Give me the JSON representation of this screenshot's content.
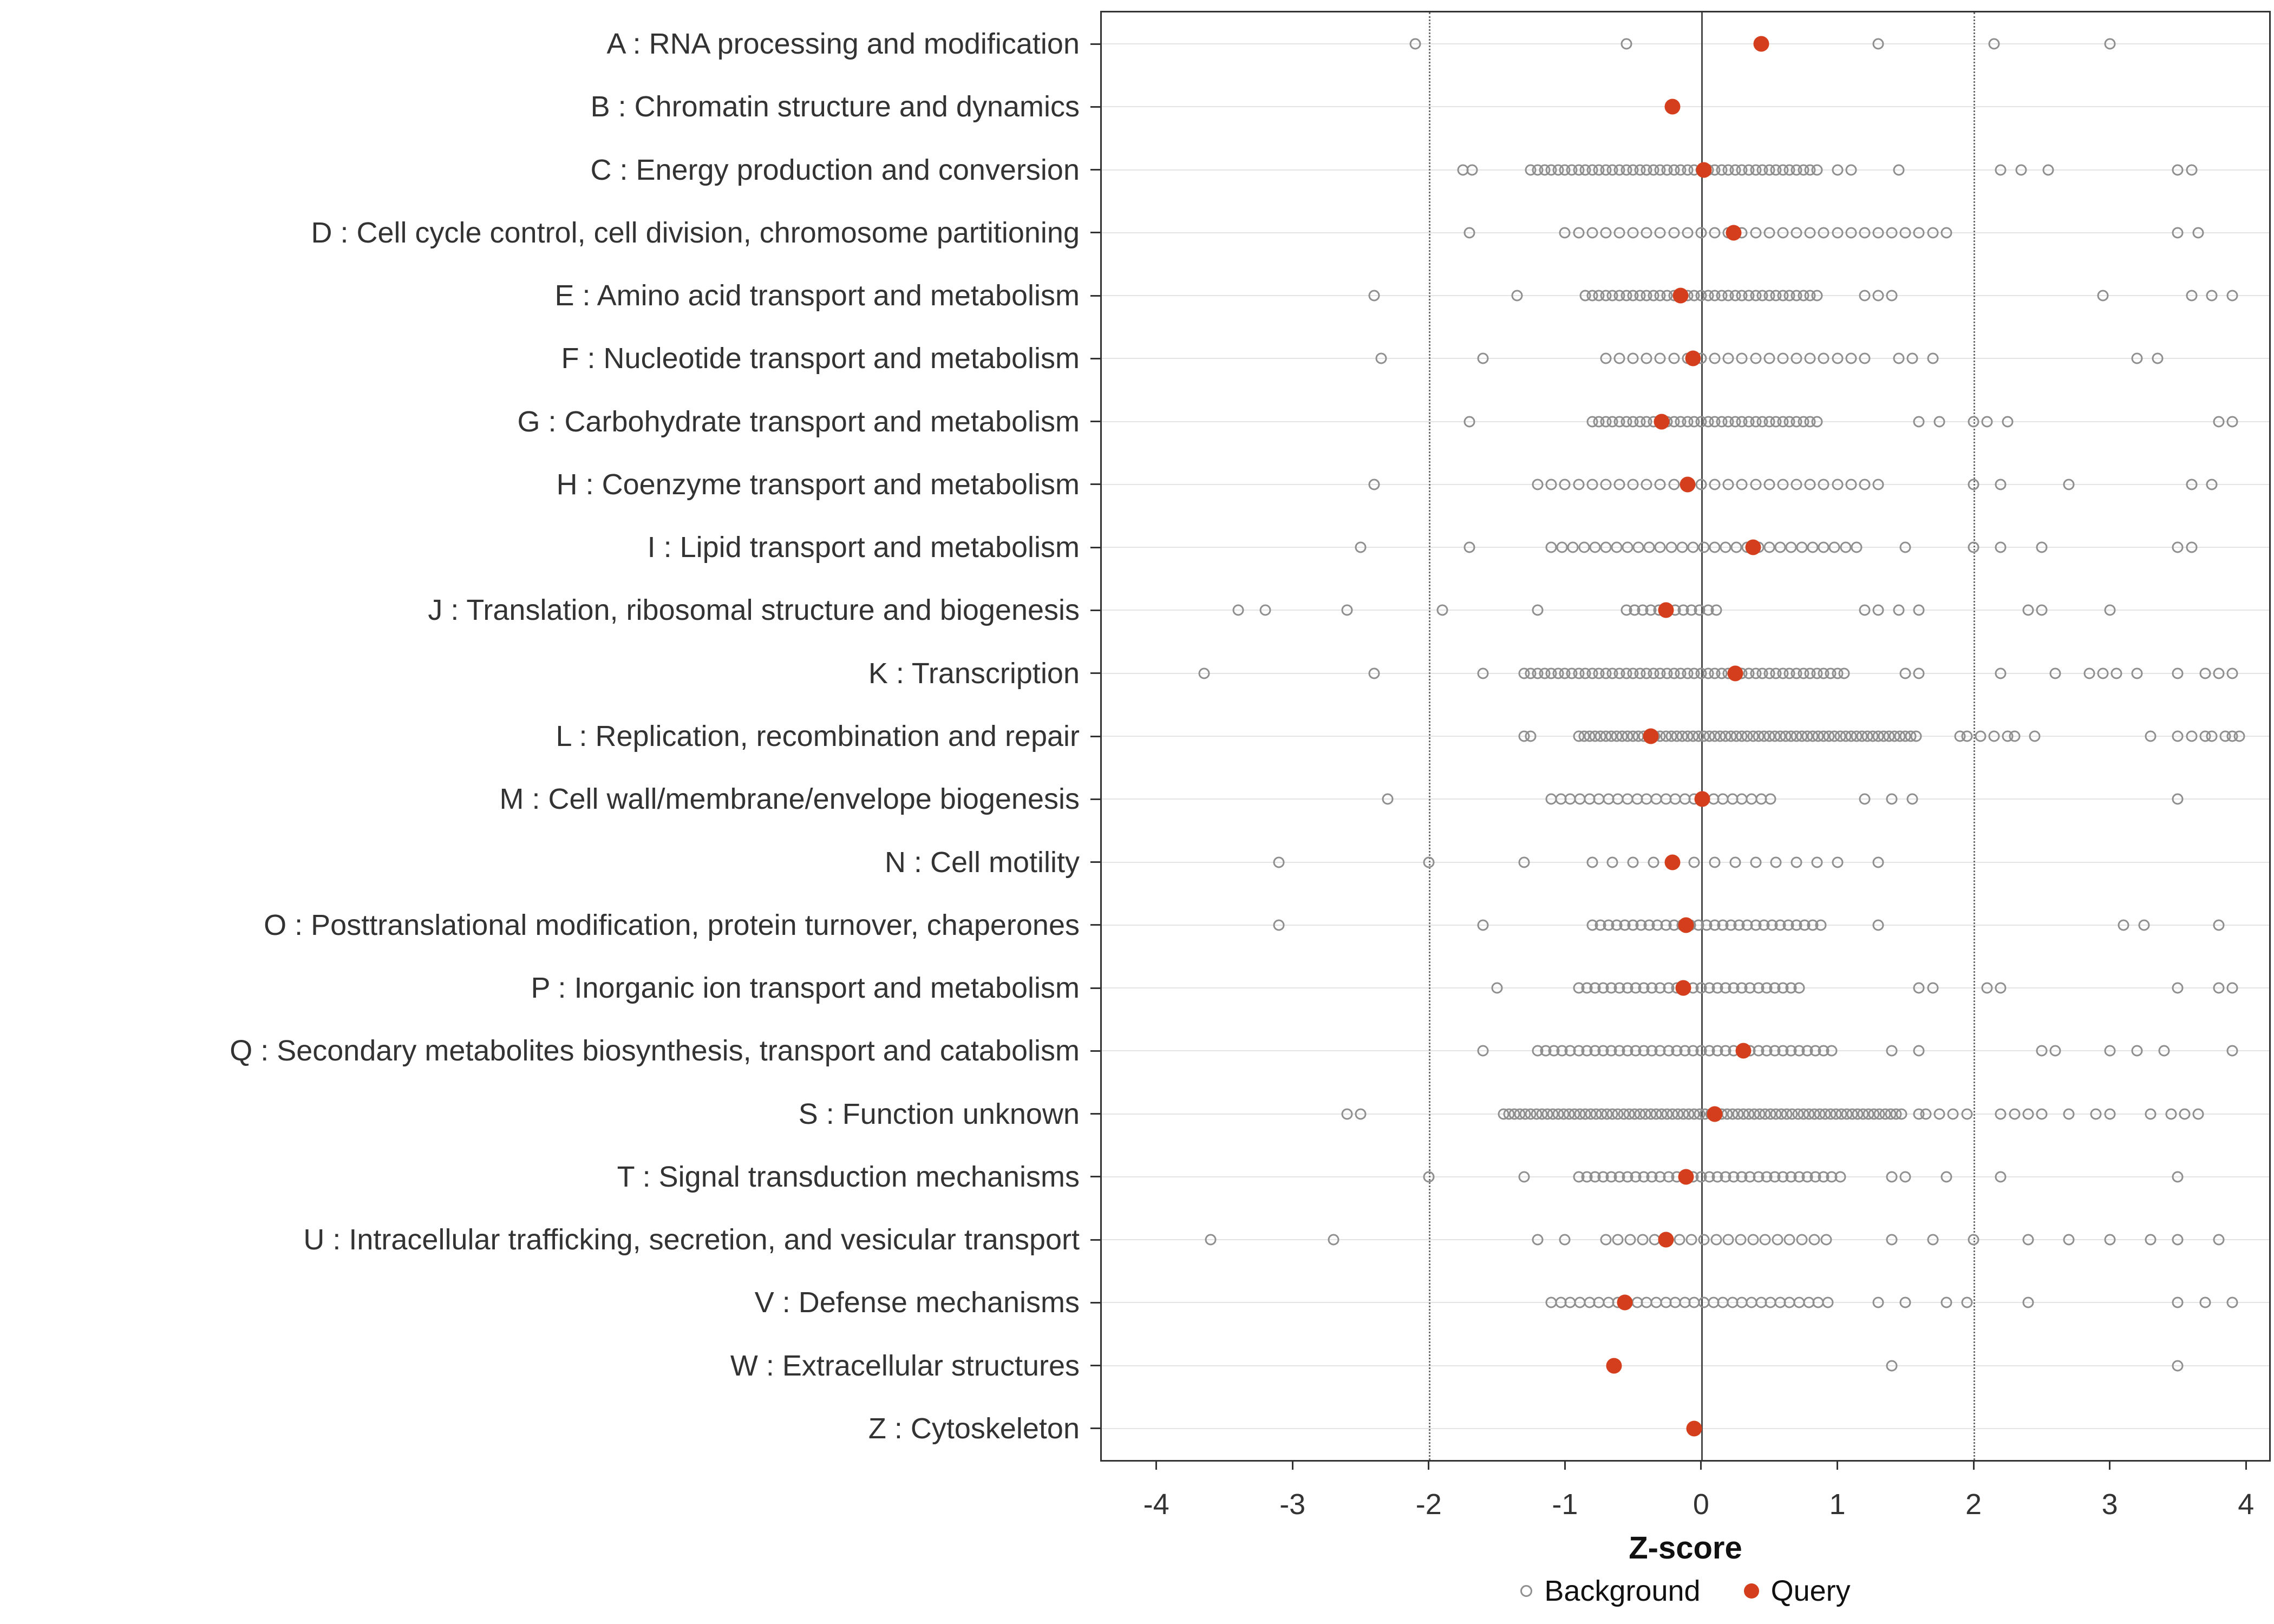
{
  "chart_data": {
    "type": "scatter",
    "title": "",
    "xlabel": "Z-score",
    "xlim": [
      -4.4,
      4.17
    ],
    "x_ticks": [
      -4,
      -3,
      -2,
      -1,
      0,
      1,
      2,
      3,
      4
    ],
    "reference_lines": {
      "solid": [
        0
      ],
      "dotted": [
        -2,
        2
      ]
    },
    "grid": "horizontal",
    "legend_position": "bottom",
    "legend": [
      {
        "label": "Background",
        "style": "open-gray"
      },
      {
        "label": "Query",
        "style": "filled-red"
      }
    ],
    "colors": {
      "query": "#d53e1d",
      "background_stroke": "#8f8f8f",
      "grid": "#e4e4e4",
      "axis": "#333333",
      "zero_line": "#4a4a4a",
      "dotted_line": "#6b6b6b"
    },
    "categories": [
      {
        "key": "A",
        "label": "A : RNA processing and modification",
        "query": 0.44,
        "background": [
          -2.1,
          -0.55,
          1.3,
          2.15,
          3.0
        ],
        "background_runs": []
      },
      {
        "key": "B",
        "label": "B : Chromatin structure and dynamics",
        "query": -0.21,
        "background": [],
        "background_runs": []
      },
      {
        "key": "C",
        "label": "C : Energy production and conversion",
        "query": 0.02,
        "background": [
          -1.75,
          -1.68,
          1.0,
          1.1,
          1.45,
          2.2,
          2.35,
          2.55,
          3.5,
          3.6
        ],
        "background_runs": [
          [
            -1.25,
            0.85,
            0.05
          ]
        ]
      },
      {
        "key": "D",
        "label": "D : Cell cycle control, cell division, chromosome partitioning",
        "query": 0.24,
        "background": [
          -1.7,
          3.5,
          3.65
        ],
        "background_runs": [
          [
            -1.0,
            1.8,
            0.1
          ]
        ]
      },
      {
        "key": "E",
        "label": "E : Amino acid transport and metabolism",
        "query": -0.15,
        "background": [
          -2.4,
          -1.35,
          1.2,
          1.3,
          1.4,
          2.95,
          3.6,
          3.75,
          3.9
        ],
        "background_runs": [
          [
            -0.85,
            0.85,
            0.05
          ]
        ]
      },
      {
        "key": "F",
        "label": "F : Nucleotide transport and metabolism",
        "query": -0.06,
        "background": [
          -2.35,
          -1.6,
          1.45,
          1.55,
          1.7,
          3.2,
          3.35
        ],
        "background_runs": [
          [
            -0.7,
            1.2,
            0.1
          ]
        ]
      },
      {
        "key": "G",
        "label": "G : Carbohydrate transport and metabolism",
        "query": -0.29,
        "background": [
          -1.7,
          1.6,
          1.75,
          2.0,
          2.1,
          2.25,
          3.8,
          3.9
        ],
        "background_runs": [
          [
            -0.8,
            0.85,
            0.05
          ]
        ]
      },
      {
        "key": "H",
        "label": "H : Coenzyme transport and metabolism",
        "query": -0.1,
        "background": [
          -2.4,
          2.0,
          2.2,
          2.7,
          3.6,
          3.75
        ],
        "background_runs": [
          [
            -1.2,
            1.3,
            0.1
          ]
        ]
      },
      {
        "key": "I",
        "label": "I : Lipid transport and metabolism",
        "query": 0.38,
        "background": [
          -2.5,
          -1.7,
          1.5,
          2.0,
          2.2,
          2.5,
          3.5,
          3.6
        ],
        "background_runs": [
          [
            -1.1,
            1.15,
            0.08
          ]
        ]
      },
      {
        "key": "J",
        "label": "J : Translation, ribosomal structure and biogenesis",
        "query": -0.26,
        "background": [
          -3.4,
          -3.2,
          -2.6,
          -1.9,
          -1.2,
          1.2,
          1.3,
          1.45,
          1.6,
          2.4,
          2.5,
          3.0
        ],
        "background_runs": [
          [
            -0.55,
            0.15,
            0.06
          ]
        ]
      },
      {
        "key": "K",
        "label": "K : Transcription",
        "query": 0.25,
        "background": [
          -3.65,
          -2.4,
          -1.6,
          1.5,
          1.6,
          2.2,
          2.6,
          2.85,
          2.95,
          3.05,
          3.2,
          3.5,
          3.7,
          3.8,
          3.9
        ],
        "background_runs": [
          [
            -1.3,
            1.05,
            0.05
          ]
        ]
      },
      {
        "key": "L",
        "label": "L : Replication, recombination and repair",
        "query": -0.37,
        "background": [
          -1.3,
          -1.25,
          1.9,
          1.95,
          2.05,
          2.15,
          2.25,
          2.3,
          2.45,
          3.3,
          3.5,
          3.6,
          3.7,
          3.75,
          3.85,
          3.9,
          3.95
        ],
        "background_runs": [
          [
            -0.9,
            1.6,
            0.04
          ]
        ]
      },
      {
        "key": "M",
        "label": "M : Cell wall/membrane/envelope biogenesis",
        "query": 0.01,
        "background": [
          -2.3,
          1.2,
          1.4,
          1.55,
          3.5
        ],
        "background_runs": [
          [
            -1.1,
            0.55,
            0.07
          ]
        ]
      },
      {
        "key": "N",
        "label": "N : Cell motility",
        "query": -0.21,
        "background": [
          -3.1,
          -2.0,
          -1.3,
          1.3
        ],
        "background_runs": [
          [
            -0.8,
            1.05,
            0.15
          ]
        ]
      },
      {
        "key": "O",
        "label": "O : Posttranslational modification, protein turnover, chaperones",
        "query": -0.11,
        "background": [
          -3.1,
          -1.6,
          1.3,
          3.1,
          3.25,
          3.8
        ],
        "background_runs": [
          [
            -0.8,
            0.9,
            0.06
          ]
        ]
      },
      {
        "key": "P",
        "label": "P : Inorganic ion transport and metabolism",
        "query": -0.13,
        "background": [
          -1.5,
          1.6,
          1.7,
          2.1,
          2.2,
          3.5,
          3.8,
          3.9
        ],
        "background_runs": [
          [
            -0.9,
            0.75,
            0.06
          ]
        ]
      },
      {
        "key": "Q",
        "label": "Q : Secondary metabolites biosynthesis, transport and catabolism",
        "query": 0.31,
        "background": [
          -1.6,
          1.4,
          1.6,
          2.5,
          2.6,
          3.0,
          3.2,
          3.4,
          3.9
        ],
        "background_runs": [
          [
            -1.2,
            1.0,
            0.06
          ]
        ]
      },
      {
        "key": "S",
        "label": "S : Function unknown",
        "query": 0.1,
        "background": [
          -2.6,
          -2.5,
          1.6,
          1.65,
          1.75,
          1.85,
          1.95,
          2.2,
          2.3,
          2.4,
          2.5,
          2.7,
          2.9,
          3.0,
          3.3,
          3.45,
          3.55,
          3.65
        ],
        "background_runs": [
          [
            -1.45,
            1.5,
            0.04
          ]
        ]
      },
      {
        "key": "T",
        "label": "T : Signal transduction mechanisms",
        "query": -0.11,
        "background": [
          -2.0,
          -1.3,
          1.4,
          1.5,
          1.8,
          2.2,
          3.5
        ],
        "background_runs": [
          [
            -0.9,
            1.05,
            0.06
          ]
        ]
      },
      {
        "key": "U",
        "label": "U : Intracellular trafficking, secretion, and vesicular transport",
        "query": -0.26,
        "background": [
          -3.6,
          -2.7,
          -1.2,
          -1.0,
          1.4,
          1.7,
          2.0,
          2.4,
          2.7,
          3.0,
          3.3,
          3.5,
          3.8
        ],
        "background_runs": [
          [
            -0.7,
            1.0,
            0.09
          ]
        ]
      },
      {
        "key": "V",
        "label": "V : Defense mechanisms",
        "query": -0.56,
        "background": [
          1.3,
          1.5,
          1.8,
          1.95,
          2.4,
          3.5,
          3.7,
          3.9
        ],
        "background_runs": [
          [
            -1.1,
            0.95,
            0.07
          ]
        ]
      },
      {
        "key": "W",
        "label": "W : Extracellular structures",
        "query": -0.64,
        "background": [
          1.4,
          3.5
        ],
        "background_runs": []
      },
      {
        "key": "Z",
        "label": "Z : Cytoskeleton",
        "query": -0.05,
        "background": [],
        "background_runs": []
      }
    ]
  }
}
